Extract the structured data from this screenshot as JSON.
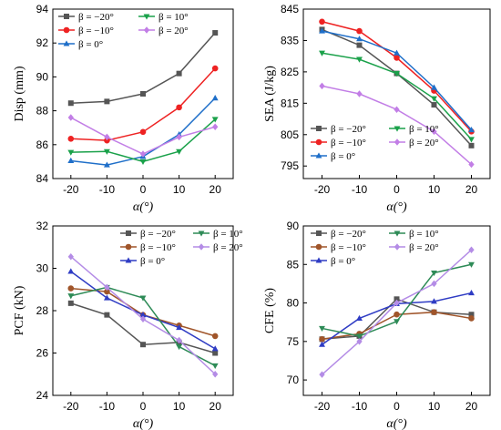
{
  "chart_data": [
    {
      "type": "line",
      "id": "disp",
      "x": [
        -20,
        -10,
        0,
        10,
        20
      ],
      "xlabel": "α(°)",
      "ylabel": "Disp (mm)",
      "ylim": [
        84,
        94
      ],
      "yticks": [
        84,
        86,
        88,
        90,
        92,
        94
      ],
      "xticks": [
        -20,
        -10,
        0,
        10,
        20
      ],
      "legend": "top-left",
      "grid": false,
      "series": [
        {
          "name": "β = −20°",
          "color": "#555555",
          "marker": "square",
          "values": [
            88.45,
            88.55,
            89.0,
            90.2,
            92.6
          ]
        },
        {
          "name": "β = −10°",
          "color": "#ee2222",
          "marker": "circle",
          "values": [
            86.35,
            86.25,
            86.75,
            88.2,
            90.5
          ]
        },
        {
          "name": "β = 0°",
          "color": "#1f6fc9",
          "marker": "triangle-up",
          "values": [
            85.05,
            84.8,
            85.3,
            86.6,
            88.75
          ]
        },
        {
          "name": "β = 10°",
          "color": "#1aa14a",
          "marker": "triangle-down",
          "values": [
            85.55,
            85.6,
            85.0,
            85.6,
            87.5
          ]
        },
        {
          "name": "β = 20°",
          "color": "#c27ee6",
          "marker": "diamond",
          "values": [
            87.6,
            86.45,
            85.45,
            86.45,
            87.05
          ]
        }
      ]
    },
    {
      "type": "line",
      "id": "sea",
      "x": [
        -20,
        -10,
        0,
        10,
        20
      ],
      "xlabel": "α(°)",
      "ylabel": "SEA (J/kg)",
      "ylim": [
        791,
        845
      ],
      "yticks": [
        795,
        805,
        815,
        825,
        835,
        845
      ],
      "xticks": [
        -20,
        -10,
        0,
        10,
        20
      ],
      "legend": "bottom-left",
      "grid": false,
      "series": [
        {
          "name": "β = −20°",
          "color": "#555555",
          "marker": "square",
          "values": [
            838.5,
            833.5,
            824.5,
            814.5,
            801.5
          ]
        },
        {
          "name": "β = −10°",
          "color": "#ee2222",
          "marker": "circle",
          "values": [
            841.0,
            838.0,
            829.5,
            819.0,
            806.0
          ]
        },
        {
          "name": "β = 0°",
          "color": "#1f6fc9",
          "marker": "triangle-up",
          "values": [
            838.0,
            835.5,
            831.0,
            820.0,
            806.5
          ]
        },
        {
          "name": "β = 10°",
          "color": "#1aa14a",
          "marker": "triangle-down",
          "values": [
            831.0,
            829.0,
            824.5,
            816.5,
            803.5
          ]
        },
        {
          "name": "β = 20°",
          "color": "#c27ee6",
          "marker": "diamond",
          "values": [
            820.5,
            818.0,
            813.0,
            806.0,
            795.5
          ]
        }
      ]
    },
    {
      "type": "line",
      "id": "pcf",
      "x": [
        -20,
        -10,
        0,
        10,
        20
      ],
      "xlabel": "α(°)",
      "ylabel": "PCF (kN)",
      "ylim": [
        24,
        32
      ],
      "yticks": [
        24,
        26,
        28,
        30,
        32
      ],
      "xticks": [
        -20,
        -10,
        0,
        10,
        20
      ],
      "legend": "top-right",
      "grid": false,
      "series": [
        {
          "name": "β = −20°",
          "color": "#555555",
          "marker": "square",
          "values": [
            28.35,
            27.8,
            26.4,
            26.5,
            26.0
          ]
        },
        {
          "name": "β = −10°",
          "color": "#a0552a",
          "marker": "circle",
          "values": [
            29.05,
            28.9,
            27.8,
            27.3,
            26.8
          ]
        },
        {
          "name": "β = 0°",
          "color": "#2f3cc4",
          "marker": "triangle-up",
          "values": [
            29.85,
            28.6,
            27.8,
            27.2,
            26.2
          ]
        },
        {
          "name": "β = 10°",
          "color": "#2e8b57",
          "marker": "triangle-down",
          "values": [
            28.7,
            29.1,
            28.6,
            26.3,
            25.4
          ]
        },
        {
          "name": "β = 20°",
          "color": "#b48ce6",
          "marker": "diamond",
          "values": [
            30.55,
            29.1,
            27.6,
            26.6,
            25.0
          ]
        }
      ]
    },
    {
      "type": "line",
      "id": "cfe",
      "x": [
        -20,
        -10,
        0,
        10,
        20
      ],
      "xlabel": "α(°)",
      "ylabel": "CFE (%)",
      "ylim": [
        68,
        90
      ],
      "yticks": [
        70,
        75,
        80,
        85,
        90
      ],
      "xticks": [
        -20,
        -10,
        0,
        10,
        20
      ],
      "legend": "top-left",
      "grid": false,
      "series": [
        {
          "name": "β = −20°",
          "color": "#555555",
          "marker": "square",
          "values": [
            75.3,
            75.7,
            80.5,
            78.8,
            78.5
          ]
        },
        {
          "name": "β = −10°",
          "color": "#a0552a",
          "marker": "circle",
          "values": [
            75.3,
            76.0,
            78.5,
            78.8,
            78.0
          ]
        },
        {
          "name": "β = 0°",
          "color": "#2f3cc4",
          "marker": "triangle-up",
          "values": [
            74.6,
            78.0,
            79.9,
            80.2,
            81.3
          ]
        },
        {
          "name": "β = 10°",
          "color": "#2e8b57",
          "marker": "triangle-down",
          "values": [
            76.7,
            75.7,
            77.6,
            83.9,
            85.0
          ]
        },
        {
          "name": "β = 20°",
          "color": "#b48ce6",
          "marker": "diamond",
          "values": [
            70.7,
            75.0,
            80.0,
            82.5,
            86.9
          ]
        }
      ]
    }
  ]
}
